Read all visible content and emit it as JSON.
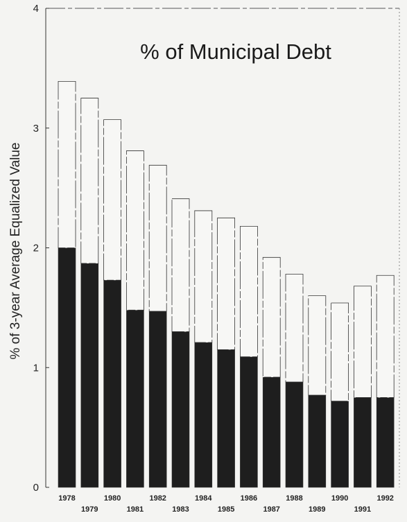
{
  "chart_data": {
    "type": "bar",
    "title": "% of Municipal Debt",
    "xlabel": "",
    "ylabel": "% of 3-year Average Equalized Value",
    "ylim": [
      0,
      4
    ],
    "yticks": [
      "0",
      "1",
      "2",
      "3",
      "4"
    ],
    "categories": [
      "1978",
      "1979",
      "1980",
      "1981",
      "1982",
      "1983",
      "1984",
      "1985",
      "1986",
      "1987",
      "1988",
      "1989",
      "1990",
      "1991",
      "1992"
    ],
    "stacked": true,
    "grid": false,
    "legend": "none",
    "series": [
      {
        "values": [
          2.0,
          1.87,
          1.73,
          1.48,
          1.47,
          1.3,
          1.21,
          1.15,
          1.09,
          0.92,
          0.88,
          0.77,
          0.72,
          0.75,
          0.75
        ],
        "color": "#1e1e1e"
      },
      {
        "values": [
          1.39,
          1.38,
          1.34,
          1.33,
          1.22,
          1.11,
          1.1,
          1.1,
          1.09,
          1.0,
          0.9,
          0.83,
          0.82,
          0.93,
          1.02
        ],
        "color": "#f7f7f5"
      }
    ]
  }
}
